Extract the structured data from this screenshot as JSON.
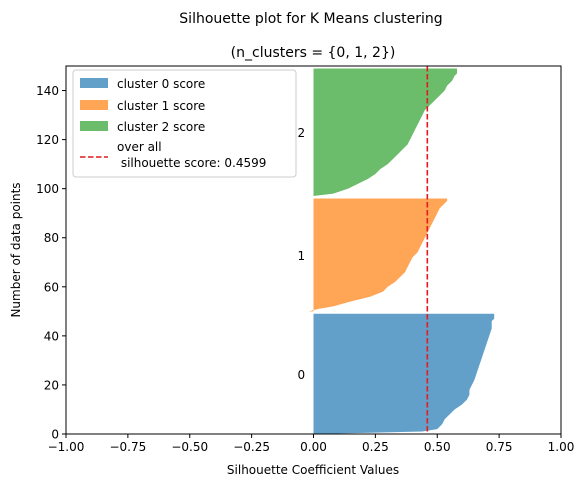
{
  "chart_data": {
    "type": "area",
    "title": "Silhouette plot for K Means clustering",
    "subtitle": "(n_clusters = {0, 1, 2})",
    "xlabel": "Silhouette Coefficient Values",
    "ylabel": "Number of data points",
    "xlim": [
      -1.0,
      1.0
    ],
    "ylim": [
      0,
      150
    ],
    "xticks": [
      -1.0,
      -0.75,
      -0.5,
      -0.25,
      0.0,
      0.25,
      0.5,
      0.75,
      1.0
    ],
    "xtick_labels": [
      "−1.00",
      "−0.75",
      "−0.50",
      "−0.25",
      "0.00",
      "0.25",
      "0.50",
      "0.75",
      "1.00"
    ],
    "yticks": [
      0,
      20,
      40,
      60,
      80,
      100,
      120,
      140
    ],
    "ytick_labels": [
      "0",
      "20",
      "40",
      "60",
      "80",
      "100",
      "120",
      "140"
    ],
    "legend_position": "upper-left",
    "clusters": [
      {
        "label": "0",
        "legend": "cluster 0 score",
        "color": "#1f77b4",
        "y_range": [
          0,
          49
        ],
        "profile": [
          [
            0,
            0.0
          ],
          [
            1,
            0.44
          ],
          [
            2,
            0.5
          ],
          [
            4,
            0.52
          ],
          [
            6,
            0.53
          ],
          [
            8,
            0.55
          ],
          [
            10,
            0.57
          ],
          [
            12,
            0.6
          ],
          [
            14,
            0.62
          ],
          [
            16,
            0.63
          ],
          [
            18,
            0.63
          ],
          [
            20,
            0.64
          ],
          [
            22,
            0.65
          ],
          [
            25,
            0.66
          ],
          [
            28,
            0.67
          ],
          [
            31,
            0.68
          ],
          [
            34,
            0.69
          ],
          [
            37,
            0.7
          ],
          [
            40,
            0.71
          ],
          [
            43,
            0.72
          ],
          [
            46,
            0.72
          ],
          [
            47,
            0.73
          ],
          [
            49,
            0.73
          ]
        ]
      },
      {
        "label": "1",
        "legend": "cluster 1 score",
        "color": "#ff7f0e",
        "y_range": [
          50,
          96
        ],
        "profile": [
          [
            50,
            -0.02
          ],
          [
            51,
            0.02
          ],
          [
            52,
            0.08
          ],
          [
            54,
            0.15
          ],
          [
            56,
            0.23
          ],
          [
            58,
            0.28
          ],
          [
            60,
            0.3
          ],
          [
            62,
            0.33
          ],
          [
            64,
            0.35
          ],
          [
            66,
            0.37
          ],
          [
            68,
            0.38
          ],
          [
            70,
            0.39
          ],
          [
            72,
            0.4
          ],
          [
            74,
            0.42
          ],
          [
            76,
            0.43
          ],
          [
            78,
            0.44
          ],
          [
            80,
            0.45
          ],
          [
            82,
            0.46
          ],
          [
            84,
            0.47
          ],
          [
            86,
            0.48
          ],
          [
            88,
            0.49
          ],
          [
            90,
            0.5
          ],
          [
            92,
            0.51
          ],
          [
            94,
            0.53
          ],
          [
            95,
            0.54
          ],
          [
            96,
            0.54
          ]
        ]
      },
      {
        "label": "2",
        "legend": "cluster 2 score",
        "color": "#2ca02c",
        "y_range": [
          97,
          149
        ],
        "profile": [
          [
            97,
            0.0
          ],
          [
            98,
            0.08
          ],
          [
            100,
            0.14
          ],
          [
            102,
            0.18
          ],
          [
            104,
            0.22
          ],
          [
            106,
            0.25
          ],
          [
            108,
            0.27
          ],
          [
            110,
            0.3
          ],
          [
            112,
            0.32
          ],
          [
            114,
            0.34
          ],
          [
            116,
            0.36
          ],
          [
            118,
            0.38
          ],
          [
            120,
            0.39
          ],
          [
            122,
            0.4
          ],
          [
            124,
            0.41
          ],
          [
            126,
            0.42
          ],
          [
            128,
            0.43
          ],
          [
            130,
            0.44
          ],
          [
            132,
            0.45
          ],
          [
            134,
            0.47
          ],
          [
            136,
            0.49
          ],
          [
            138,
            0.51
          ],
          [
            140,
            0.53
          ],
          [
            142,
            0.54
          ],
          [
            144,
            0.56
          ],
          [
            146,
            0.57
          ],
          [
            147,
            0.58
          ],
          [
            149,
            0.58
          ]
        ]
      }
    ],
    "average_line": {
      "value": 0.4599,
      "color": "#e41a1c",
      "style": "dashed",
      "legend_line1": "over all",
      "legend_line2": " silhouette score: 0.4599"
    }
  }
}
